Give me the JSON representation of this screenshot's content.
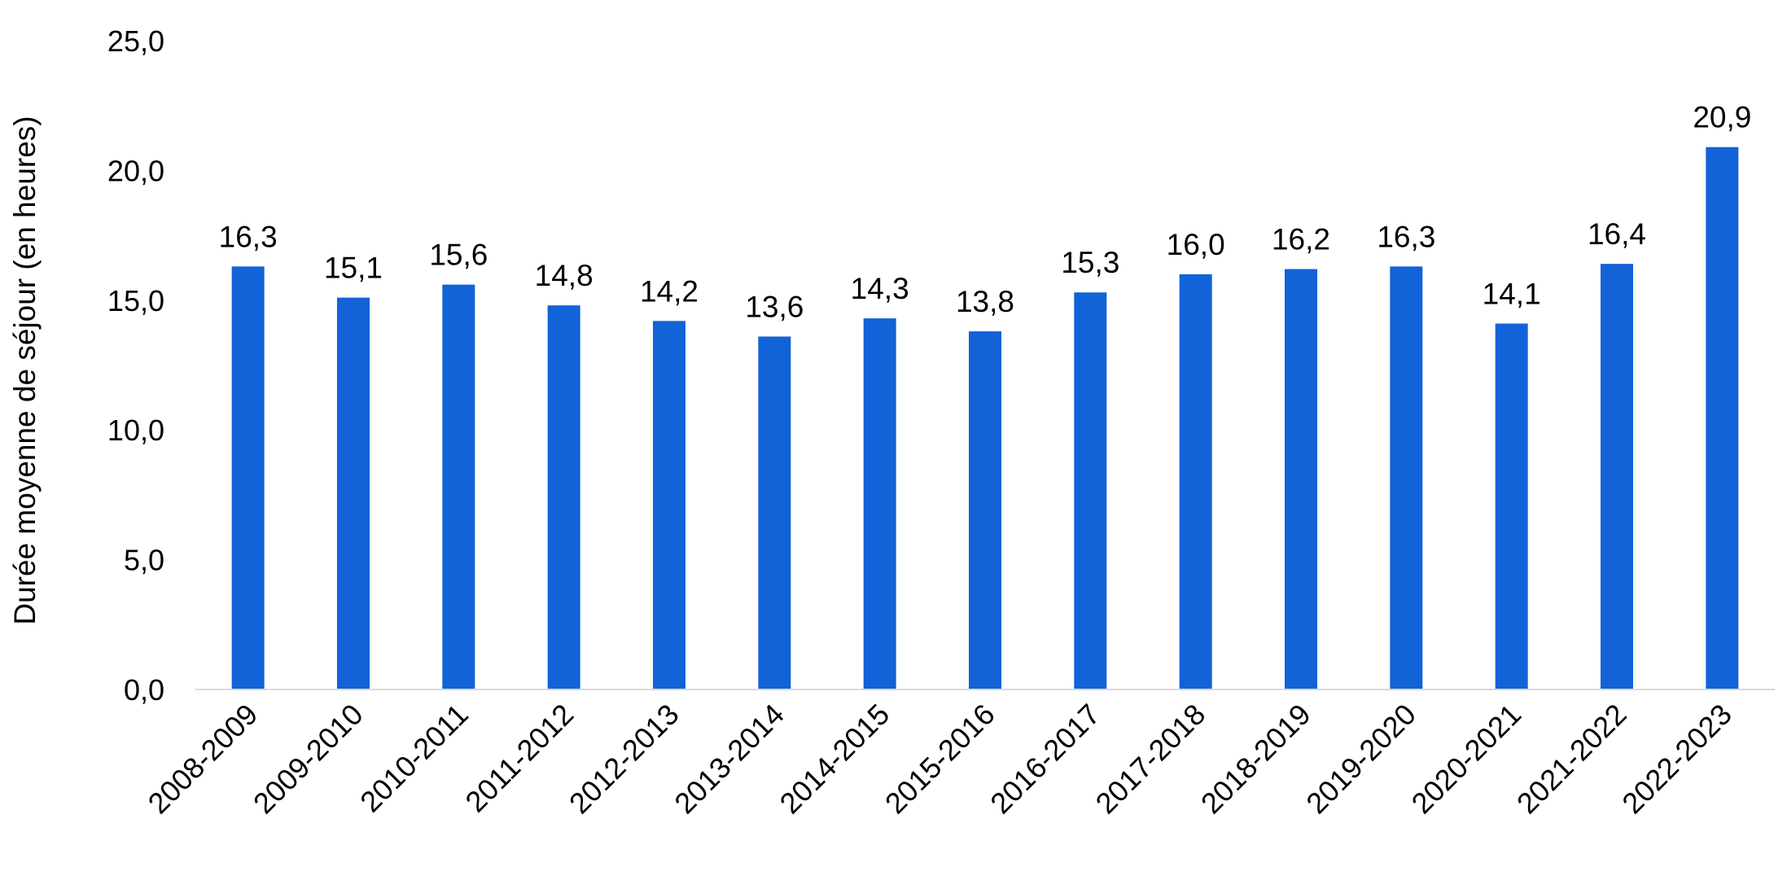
{
  "chart_data": {
    "type": "bar",
    "title": "",
    "xlabel": "",
    "ylabel": "Durée moyenne de séjour (en heures)",
    "ylim": [
      0,
      25
    ],
    "yticks": [
      "0,0",
      "5,0",
      "10,0",
      "15,0",
      "20,0",
      "25,0"
    ],
    "grid": false,
    "legend": "none",
    "bar_color": "#1262D8",
    "axis_color": "#D9D9D9",
    "categories": [
      "2008-2009",
      "2009-2010",
      "2010-2011",
      "2011-2012",
      "2012-2013",
      "2013-2014",
      "2014-2015",
      "2015-2016",
      "2016-2017",
      "2017-2018",
      "2018-2019",
      "2019-2020",
      "2020-2021",
      "2021-2022",
      "2022-2023"
    ],
    "values": [
      16.3,
      15.1,
      15.6,
      14.8,
      14.2,
      13.6,
      14.3,
      13.8,
      15.3,
      16.0,
      16.2,
      16.3,
      14.1,
      16.4,
      20.9
    ],
    "data_labels": [
      "16,3",
      "15,1",
      "15,6",
      "14,8",
      "14,2",
      "13,6",
      "14,3",
      "13,8",
      "15,3",
      "16,0",
      "16,2",
      "16,3",
      "14,1",
      "16,4",
      "20,9"
    ]
  }
}
